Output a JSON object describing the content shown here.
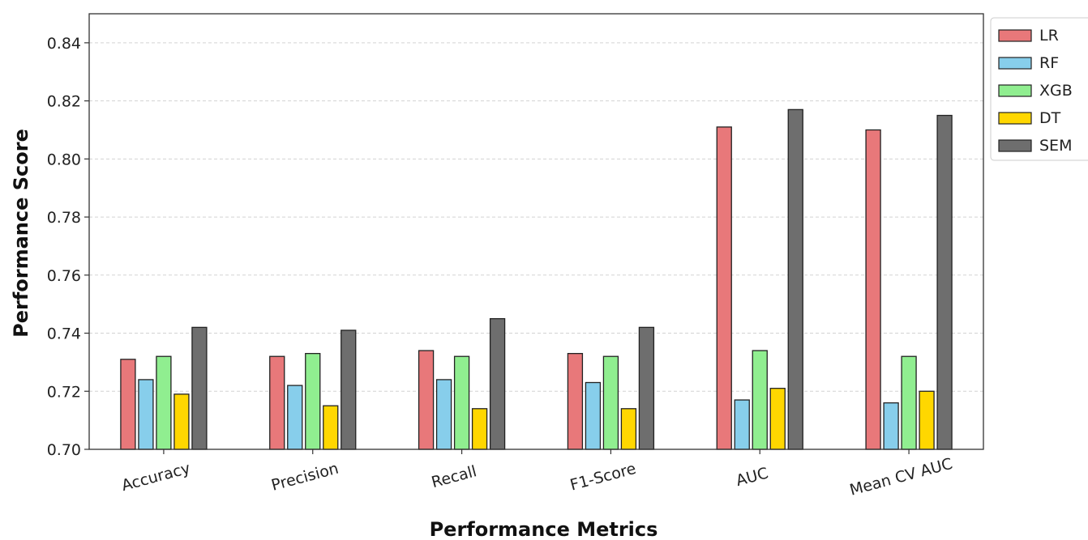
{
  "chart_data": {
    "type": "bar",
    "xlabel": "Performance Metrics",
    "ylabel": "Performance Score",
    "categories": [
      "Accuracy",
      "Precision",
      "Recall",
      "F1-Score",
      "AUC",
      "Mean CV AUC"
    ],
    "ylim": [
      0.7,
      0.85
    ],
    "yticks": [
      "0.70",
      "0.72",
      "0.74",
      "0.76",
      "0.78",
      "0.80",
      "0.82",
      "0.84"
    ],
    "grid": "horizontal dashed",
    "legend_position": "top-right",
    "series": [
      {
        "name": "LR",
        "color": "#e8787a",
        "values": [
          0.731,
          0.732,
          0.734,
          0.733,
          0.811,
          0.81
        ]
      },
      {
        "name": "RF",
        "color": "#87ceeb",
        "values": [
          0.724,
          0.722,
          0.724,
          0.723,
          0.717,
          0.716
        ]
      },
      {
        "name": "XGB",
        "color": "#90ee90",
        "values": [
          0.732,
          0.733,
          0.732,
          0.732,
          0.734,
          0.732
        ]
      },
      {
        "name": "DT",
        "color": "#ffd700",
        "values": [
          0.719,
          0.715,
          0.714,
          0.714,
          0.721,
          0.72
        ]
      },
      {
        "name": "SEM",
        "color": "#6e6e6e",
        "values": [
          0.742,
          0.741,
          0.745,
          0.742,
          0.817,
          0.815
        ]
      }
    ]
  }
}
